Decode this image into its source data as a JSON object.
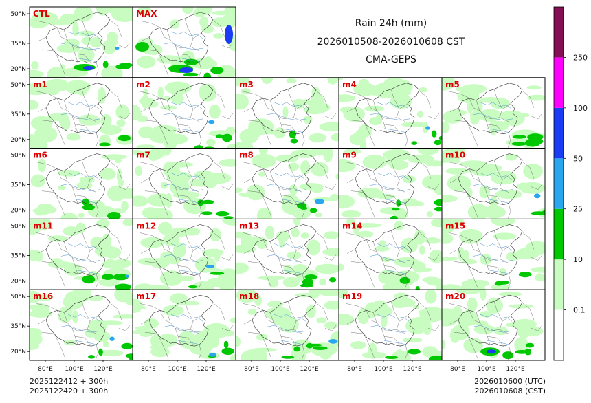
{
  "figure": {
    "title": "Rain 24h (mm)",
    "period": "2026010508-2026010608 CST",
    "model": "CMA-GEPS"
  },
  "panels": [
    "CTL",
    "MAX",
    "m1",
    "m2",
    "m3",
    "m4",
    "m5",
    "m6",
    "m7",
    "m8",
    "m9",
    "m10",
    "m11",
    "m12",
    "m13",
    "m14",
    "m15",
    "m16",
    "m17",
    "m18",
    "m19",
    "m20"
  ],
  "axes": {
    "lat_ticks": [
      "50°N",
      "35°N",
      "20°N"
    ],
    "lon_ticks": [
      "80°E",
      "100°E",
      "120°E"
    ]
  },
  "colorbar": {
    "levels": [
      "0.1",
      "10",
      "25",
      "50",
      "100",
      "250"
    ],
    "colors": [
      "#ffffff",
      "#c8fcc0",
      "#00c800",
      "#2aa6f0",
      "#1a3cf5",
      "#ff00ff",
      "#840f54"
    ]
  },
  "footer": {
    "init_line1": "2025122412 + 300h",
    "init_line2": "2025122420 + 300h",
    "valid_line1": "2026010600 (UTC)",
    "valid_line2": "2026010608 (CST)"
  },
  "colors": {
    "label_red": "#dd0000",
    "rain_light": "#c8fcc0",
    "rain_green": "#00c800",
    "rain_sky": "#2aa6f0",
    "rain_blue": "#1a3cf5",
    "river_blue": "#4a90d0"
  }
}
